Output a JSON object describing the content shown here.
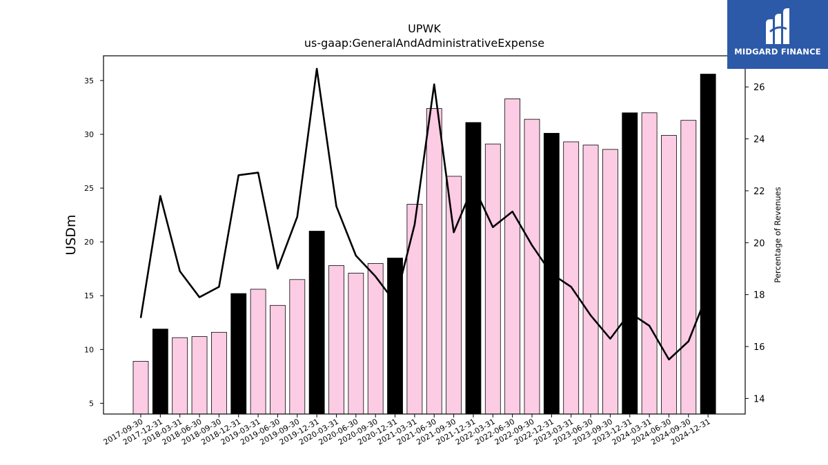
{
  "logo": {
    "text": "MIDGARD FINANCE",
    "icon": "midgard-finance-logo-icon",
    "bg_color": "#2c5aa8"
  },
  "chart_data": {
    "type": "bar",
    "title": "UPWK",
    "subtitle": "us-gaap:GeneralAndAdministrativeExpense",
    "ylabel": "USDm",
    "y2label": "Percentage of Revenues",
    "ylim": [
      4.0,
      37.3
    ],
    "y2lim": [
      13.4,
      27.2
    ],
    "yticks": [
      5,
      10,
      15,
      20,
      25,
      30,
      35
    ],
    "y2ticks": [
      14,
      16,
      18,
      20,
      22,
      24,
      26
    ],
    "grid": false,
    "colors": {
      "regular_bar": "#fccce4",
      "year_end_bar": "#000000",
      "line": "#000000"
    },
    "categories": [
      "2017-09-30",
      "2017-12-31",
      "2018-03-31",
      "2018-06-30",
      "2018-09-30",
      "2018-12-31",
      "2019-03-31",
      "2019-06-30",
      "2019-09-30",
      "2019-12-31",
      "2020-03-31",
      "2020-06-30",
      "2020-09-30",
      "2020-12-31",
      "2021-03-31",
      "2021-06-30",
      "2021-09-30",
      "2021-12-31",
      "2022-03-31",
      "2022-06-30",
      "2022-09-30",
      "2022-12-31",
      "2023-03-31",
      "2023-06-30",
      "2023-09-30",
      "2023-12-31",
      "2024-03-31",
      "2024-06-30",
      "2024-09-30",
      "2024-12-31"
    ],
    "series": [
      {
        "type": "bar",
        "values": [
          8.9,
          11.9,
          11.1,
          11.2,
          11.6,
          15.2,
          15.6,
          14.1,
          16.5,
          21.0,
          17.8,
          17.1,
          18.0,
          18.5,
          23.5,
          32.4,
          26.1,
          31.1,
          29.1,
          33.3,
          31.4,
          30.1,
          29.3,
          29.0,
          28.6,
          32.0,
          32.0,
          29.9,
          31.3,
          35.6
        ],
        "year_end": [
          false,
          true,
          false,
          false,
          false,
          true,
          false,
          false,
          false,
          true,
          false,
          false,
          false,
          true,
          false,
          false,
          false,
          true,
          false,
          false,
          false,
          true,
          false,
          false,
          false,
          true,
          false,
          false,
          false,
          true
        ]
      },
      {
        "type": "line",
        "axis": "right",
        "values": [
          17.1,
          21.8,
          18.9,
          17.9,
          18.3,
          22.6,
          22.7,
          19.0,
          21.0,
          26.7,
          21.4,
          19.5,
          18.7,
          17.7,
          20.7,
          26.1,
          20.4,
          22.2,
          20.6,
          21.2,
          19.9,
          18.8,
          18.3,
          17.2,
          16.3,
          17.3,
          16.8,
          15.5,
          16.2,
          18.1
        ]
      }
    ]
  }
}
